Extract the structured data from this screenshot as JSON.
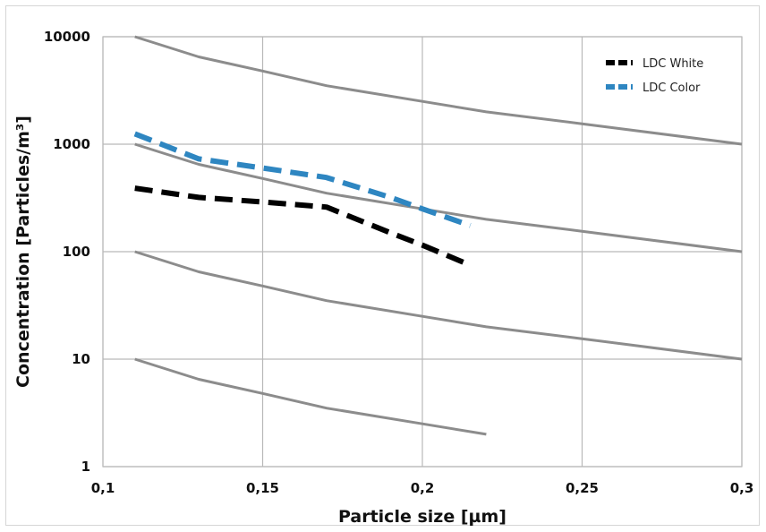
{
  "chart_data": {
    "type": "line",
    "xlabel": "Particle size [µm]",
    "ylabel": "Concentration [Particles/m³]",
    "x_scale": "linear",
    "y_scale": "log",
    "xlim": [
      0.1,
      0.3
    ],
    "ylim": [
      1,
      10000
    ],
    "x_ticks": [
      0.1,
      0.15,
      0.2,
      0.25,
      0.3
    ],
    "x_tick_labels": [
      "0,1",
      "0,15",
      "0,2",
      "0,25",
      "0,3"
    ],
    "y_ticks": [
      1,
      10,
      100,
      1000,
      10000
    ],
    "y_tick_labels": [
      "1",
      "10",
      "100",
      "1000",
      "10000"
    ],
    "grid": true,
    "legend_position": "top-right",
    "series": [
      {
        "name": "LDC White",
        "style": "dashed",
        "color": "#000000",
        "x": [
          0.11,
          0.13,
          0.15,
          0.17,
          0.19,
          0.2,
          0.215
        ],
        "y": [
          390,
          320,
          290,
          260,
          150,
          115,
          75
        ]
      },
      {
        "name": "LDC Color",
        "style": "dashed",
        "color": "#2E86C1",
        "x": [
          0.11,
          0.13,
          0.15,
          0.17,
          0.19,
          0.2,
          0.215
        ],
        "y": [
          1250,
          730,
          600,
          490,
          320,
          250,
          175
        ]
      }
    ],
    "reference_lines": [
      {
        "style": "solid",
        "color": "#8c8c8c",
        "x": [
          0.11,
          0.13,
          0.15,
          0.17,
          0.2,
          0.22,
          0.25,
          0.3
        ],
        "y": [
          10000,
          6500,
          4800,
          3500,
          2500,
          2000,
          1550,
          1000
        ]
      },
      {
        "style": "solid",
        "color": "#8c8c8c",
        "x": [
          0.11,
          0.13,
          0.15,
          0.17,
          0.2,
          0.22,
          0.25,
          0.3
        ],
        "y": [
          1000,
          650,
          480,
          350,
          250,
          200,
          155,
          100
        ]
      },
      {
        "style": "solid",
        "color": "#8c8c8c",
        "x": [
          0.11,
          0.13,
          0.15,
          0.17,
          0.2,
          0.22,
          0.25,
          0.3
        ],
        "y": [
          100,
          65,
          48,
          35,
          25,
          20,
          15.5,
          10
        ]
      },
      {
        "style": "solid",
        "color": "#8c8c8c",
        "x": [
          0.11,
          0.13,
          0.15,
          0.17,
          0.2,
          0.22
        ],
        "y": [
          10,
          6.5,
          4.8,
          3.5,
          2.5,
          2.0
        ]
      }
    ]
  }
}
